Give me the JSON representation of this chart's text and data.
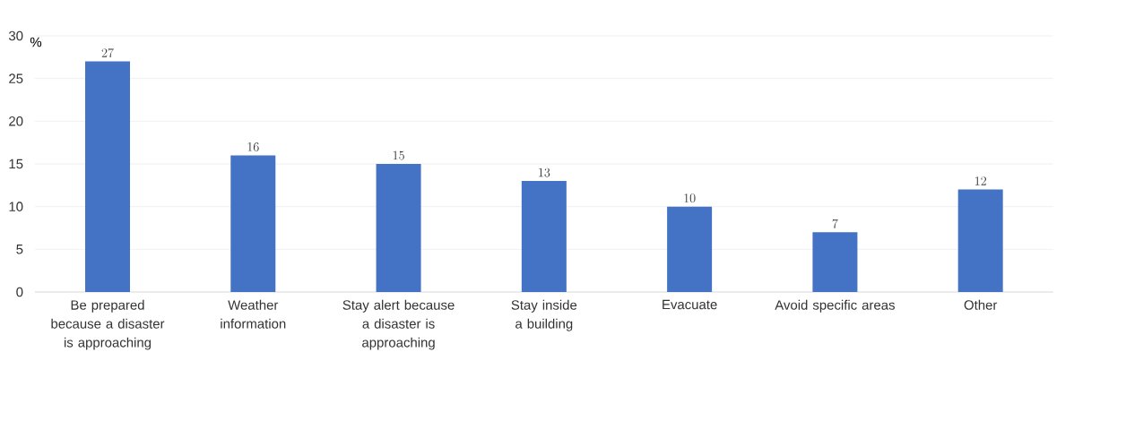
{
  "chart_data": {
    "type": "bar",
    "ylabel": "%",
    "categories": [
      "Be prepared because a disaster is approaching",
      "Weather information",
      "Stay alert because a disaster is approaching",
      "Stay inside a building",
      "Evacuate",
      "Avoid specific areas",
      "Other"
    ],
    "values": [
      27,
      16,
      15,
      13,
      10,
      7,
      12
    ],
    "color": "#4472c4",
    "ylim": [
      0,
      30
    ],
    "yticks": [
      0,
      5,
      10,
      15,
      20,
      25,
      30
    ],
    "grid": "y",
    "data_labels": true
  }
}
